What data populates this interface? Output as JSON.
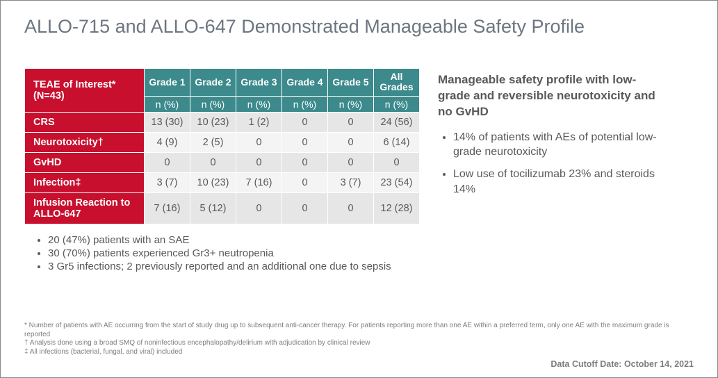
{
  "title": "ALLO-715 and ALLO-647 Demonstrated Manageable Safety Profile",
  "table": {
    "row_header_title": "TEAE of Interest* (N=43)",
    "grade_headers": [
      "Grade 1",
      "Grade 2",
      "Grade 3",
      "Grade 4",
      "Grade 5"
    ],
    "all_header_line1": "All",
    "all_header_line2": "Grades",
    "sub_header": "n (%)",
    "rows": [
      {
        "label": "CRS",
        "cells": [
          "13 (30)",
          "10 (23)",
          "1 (2)",
          "0",
          "0",
          "24 (56)"
        ]
      },
      {
        "label": "Neurotoxicity†",
        "cells": [
          "4 (9)",
          "2 (5)",
          "0",
          "0",
          "0",
          "6 (14)"
        ]
      },
      {
        "label": "GvHD",
        "cells": [
          "0",
          "0",
          "0",
          "0",
          "0",
          "0"
        ]
      },
      {
        "label": "Infection‡",
        "cells": [
          "3 (7)",
          "10 (23)",
          "7 (16)",
          "0",
          "3 (7)",
          "23 (54)"
        ]
      },
      {
        "label": "Infusion Reaction to ALLO-647",
        "cells": [
          "7 (16)",
          "5 (12)",
          "0",
          "0",
          "0",
          "12 (28)"
        ]
      }
    ]
  },
  "below_bullets": [
    "20 (47%) patients with an SAE",
    "30 (70%) patients experienced Gr3+ neutropenia",
    "3 Gr5 infections; 2 previously reported and an additional one due to sepsis"
  ],
  "side": {
    "heading": "Manageable safety profile with low-grade and reversible neurotoxicity and no GvHD",
    "bullets": [
      "14% of patients with AEs of potential low-grade neurotoxicity",
      "Low use of tocilizumab 23% and steroids 14%"
    ]
  },
  "footnotes": [
    "* Number of patients with AE occurring from the start of study drug up to subsequent anti-cancer therapy. For patients reporting more than one AE within a preferred term, only one AE with the maximum grade is reported",
    "† Analysis done using a broad SMQ of noninfectious encephalopathy/delirium with adjudication by clinical review",
    "‡ All infections (bacterial, fungal, and viral) included"
  ],
  "cutoff": "Data Cutoff Date: October 14, 2021",
  "colors": {
    "title": "#6c7680",
    "row_header_bg": "#c8102e",
    "col_header_bg": "#3c8a8c",
    "odd_row_bg": "#e6e6e6",
    "even_row_bg": "#f4f4f4",
    "body_text": "#595959",
    "footnote_text": "#7d7d7d"
  }
}
